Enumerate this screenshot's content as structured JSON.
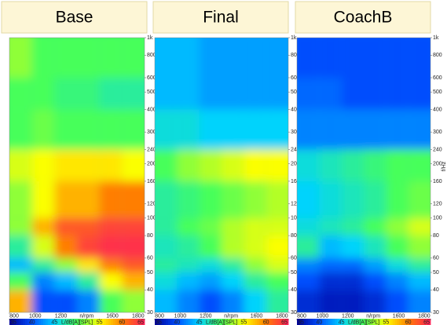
{
  "chart_data": [
    {
      "type": "heatmap",
      "title": "Base",
      "xlabel": "n/rpm",
      "xlabel_at": 1400,
      "log_y": true,
      "xlim": [
        800,
        1850
      ],
      "ylim": [
        30,
        1000
      ],
      "xticks": [
        800,
        1000,
        1200,
        1600,
        1800
      ],
      "yticks": [
        {
          "value": 1000,
          "label": "1k"
        },
        800,
        600,
        500,
        400,
        300,
        240,
        200,
        160,
        120,
        100,
        80,
        60,
        50,
        40,
        30
      ],
      "xbins": [
        800,
        975,
        1150,
        1325,
        1500,
        1675,
        1850
      ],
      "ybins": [
        30,
        40,
        50,
        60,
        80,
        100,
        160,
        240,
        400,
        600,
        1000
      ],
      "z": [
        [
          58,
          40,
          40,
          42,
          50,
          52
        ],
        [
          50,
          42,
          44,
          48,
          55,
          58
        ],
        [
          44,
          48,
          52,
          56,
          60,
          62
        ],
        [
          48,
          54,
          60,
          63,
          64,
          64
        ],
        [
          52,
          58,
          62,
          62,
          63,
          63
        ],
        [
          52,
          55,
          58,
          58,
          60,
          60
        ],
        [
          54,
          55,
          56,
          56,
          56,
          55
        ],
        [
          50,
          51,
          50,
          50,
          50,
          50
        ],
        [
          50,
          50,
          49,
          49,
          48,
          48
        ],
        [
          52,
          50,
          50,
          50,
          50,
          50
        ]
      ],
      "zlim": [
        35,
        65
      ],
      "zticks": [
        35,
        40,
        45,
        55,
        60,
        65
      ],
      "zlabel": "L/dB[A][SPL]",
      "zlabel_at": 50
    },
    {
      "type": "heatmap",
      "title": "Final",
      "xlabel": "n/rpm",
      "xlabel_at": 1400,
      "log_y": true,
      "xlim": [
        800,
        1850
      ],
      "ylim": [
        30,
        1000
      ],
      "xticks": [
        800,
        1000,
        1200,
        1600,
        1800
      ],
      "yticks": [
        {
          "value": 1000,
          "label": "1k"
        },
        800,
        600,
        500,
        400,
        300,
        240,
        200,
        160,
        120,
        100,
        80,
        60,
        50,
        40,
        30
      ],
      "xbins": [
        800,
        975,
        1150,
        1325,
        1500,
        1675,
        1850
      ],
      "ybins": [
        30,
        40,
        50,
        60,
        80,
        100,
        160,
        240,
        400,
        600,
        1000
      ],
      "z": [
        [
          44,
          42,
          40,
          42,
          45,
          48
        ],
        [
          46,
          44,
          43,
          45,
          48,
          50
        ],
        [
          48,
          47,
          46,
          48,
          52,
          54
        ],
        [
          47,
          48,
          50,
          53,
          54,
          55
        ],
        [
          48,
          50,
          51,
          53,
          54,
          54
        ],
        [
          48,
          49,
          50,
          51,
          52,
          53
        ],
        [
          50,
          52,
          53,
          54,
          55,
          55
        ],
        [
          46,
          46,
          45,
          45,
          45,
          45
        ],
        [
          44,
          44,
          43,
          43,
          43,
          43
        ],
        [
          44,
          44,
          43,
          43,
          43,
          43
        ]
      ],
      "zlim": [
        35,
        65
      ],
      "zticks": [
        35,
        40,
        45,
        55,
        60,
        65
      ],
      "zlabel": "L/dB[A][SPL]",
      "zlabel_at": 50
    },
    {
      "type": "heatmap",
      "title": "CoachB",
      "xlabel": "n/rpm",
      "xlabel_at": 1400,
      "ylabel": "f/Hz",
      "log_y": true,
      "xlim": [
        800,
        1850
      ],
      "ylim": [
        30,
        1000
      ],
      "xticks": [
        800,
        1000,
        1200,
        1600,
        1800
      ],
      "yticks": [
        {
          "value": 1000,
          "label": "1k"
        },
        800,
        600,
        500,
        400,
        300,
        240,
        200,
        160,
        120,
        100,
        80,
        60,
        50,
        40,
        30
      ],
      "xbins": [
        800,
        975,
        1150,
        1325,
        1500,
        1675,
        1850
      ],
      "ybins": [
        30,
        40,
        50,
        60,
        80,
        100,
        160,
        240,
        400,
        600,
        1000
      ],
      "z": [
        [
          38,
          37,
          37,
          38,
          40,
          42
        ],
        [
          40,
          38,
          38,
          40,
          42,
          44
        ],
        [
          42,
          41,
          41,
          43,
          46,
          48
        ],
        [
          48,
          44,
          45,
          47,
          50,
          52
        ],
        [
          46,
          47,
          48,
          50,
          52,
          54
        ],
        [
          45,
          46,
          47,
          48,
          50,
          51
        ],
        [
          46,
          47,
          48,
          49,
          50,
          50
        ],
        [
          42,
          42,
          42,
          42,
          42,
          42
        ],
        [
          41,
          41,
          40,
          40,
          40,
          40
        ],
        [
          40,
          40,
          40,
          40,
          40,
          40
        ]
      ],
      "zlim": [
        35,
        65
      ],
      "zticks": [
        35,
        40,
        45,
        55,
        60,
        65
      ],
      "zlabel": "L/dB[A][SPL]",
      "zlabel_at": 50
    }
  ]
}
